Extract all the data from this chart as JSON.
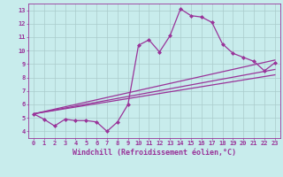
{
  "title": "",
  "xlabel": "Windchill (Refroidissement éolien,°C)",
  "ylabel": "",
  "bg_color": "#c8ecec",
  "line_color": "#993399",
  "grid_color": "#aacccc",
  "xlim": [
    -0.5,
    23.5
  ],
  "ylim": [
    3.5,
    13.5
  ],
  "xticks": [
    0,
    1,
    2,
    3,
    4,
    5,
    6,
    7,
    8,
    9,
    10,
    11,
    12,
    13,
    14,
    15,
    16,
    17,
    18,
    19,
    20,
    21,
    22,
    23
  ],
  "yticks": [
    4,
    5,
    6,
    7,
    8,
    9,
    10,
    11,
    12,
    13
  ],
  "series1": {
    "x": [
      0,
      1,
      2,
      3,
      4,
      5,
      6,
      7,
      8,
      9,
      10,
      11,
      12,
      13,
      14,
      15,
      16,
      17,
      18,
      19,
      20,
      21,
      22,
      23
    ],
    "y": [
      5.3,
      4.9,
      4.4,
      4.9,
      4.8,
      4.8,
      4.7,
      4.0,
      4.7,
      6.0,
      10.4,
      10.8,
      9.9,
      11.1,
      13.1,
      12.6,
      12.5,
      12.1,
      10.5,
      9.8,
      9.5,
      9.2,
      8.5,
      9.1
    ]
  },
  "series2": {
    "x": [
      0,
      23
    ],
    "y": [
      5.3,
      9.3
    ]
  },
  "series3": {
    "x": [
      0,
      23
    ],
    "y": [
      5.3,
      8.2
    ]
  },
  "series4": {
    "x": [
      0,
      23
    ],
    "y": [
      5.3,
      8.6
    ]
  },
  "marker": "D",
  "markersize": 2.0,
  "linewidth": 0.9,
  "tick_fontsize": 5.0,
  "xlabel_fontsize": 6.0
}
